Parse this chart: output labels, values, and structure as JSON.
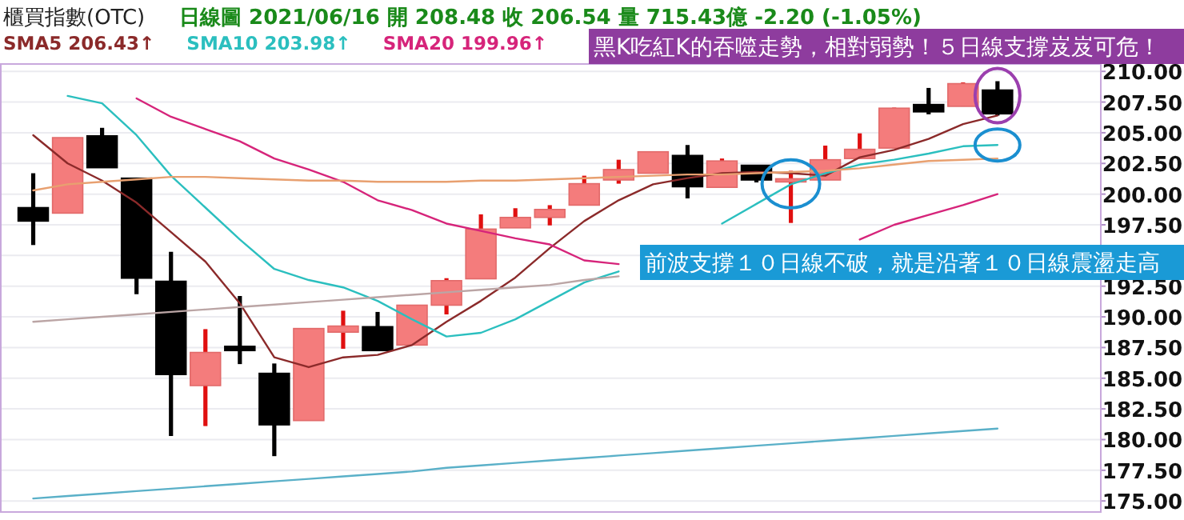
{
  "chart_data": {
    "type": "candlestick",
    "title": "櫃買指數(OTC)",
    "subtitle": "日線圖  2021/06/16  開 208.48  收 206.54  量 715.43億  -2.20 (-1.05%)",
    "categories": [
      null,
      null,
      null,
      null,
      null,
      null,
      null,
      null,
      null,
      null,
      null,
      null,
      null,
      null,
      null,
      null,
      null,
      null,
      null,
      null,
      null,
      null,
      null,
      null,
      null,
      null,
      null,
      null,
      null
    ],
    "ohlc": [
      [
        198.9,
        201.7,
        195.85,
        197.8
      ],
      [
        198.45,
        204.6,
        198.45,
        204.6
      ],
      [
        204.75,
        205.4,
        202.15,
        202.15
      ],
      [
        201.3,
        201.3,
        191.85,
        193.15
      ],
      [
        192.9,
        195.3,
        180.3,
        185.3
      ],
      [
        184.4,
        189.0,
        181.1,
        187.1
      ],
      [
        187.6,
        191.7,
        186.15,
        187.25
      ],
      [
        185.4,
        186.2,
        178.65,
        181.2
      ],
      [
        181.55,
        189.05,
        181.55,
        189.05
      ],
      [
        188.75,
        190.5,
        187.4,
        189.25
      ],
      [
        189.2,
        190.4,
        187.25,
        187.25
      ],
      [
        187.7,
        190.95,
        187.7,
        190.95
      ],
      [
        190.95,
        193.15,
        190.2,
        192.95
      ],
      [
        193.1,
        198.35,
        193.1,
        197.15
      ],
      [
        197.25,
        198.85,
        197.25,
        198.1
      ],
      [
        198.1,
        199.1,
        197.45,
        198.75
      ],
      [
        199.1,
        201.5,
        199.1,
        200.85
      ],
      [
        201.15,
        202.8,
        200.85,
        202.0
      ],
      [
        201.7,
        203.45,
        201.7,
        203.45
      ],
      [
        203.15,
        204.0,
        199.65,
        200.6
      ],
      [
        200.55,
        202.9,
        200.55,
        202.7
      ],
      [
        202.35,
        202.35,
        200.95,
        201.15
      ],
      [
        201.1,
        201.9,
        197.65,
        201.25
      ],
      [
        201.15,
        203.95,
        201.15,
        202.8
      ],
      [
        202.9,
        204.95,
        202.9,
        203.65
      ],
      [
        203.75,
        207.05,
        203.75,
        207.0
      ],
      [
        207.3,
        208.65,
        206.5,
        206.7
      ],
      [
        207.15,
        209.1,
        207.15,
        209.0
      ],
      [
        208.48,
        209.2,
        206.4,
        206.54
      ]
    ],
    "colors": [
      "#000000",
      "#f47c7c",
      "#000000",
      "#000000",
      "#000000",
      "#f47c7c",
      "#000000",
      "#000000",
      "#f47c7c",
      "#f47c7c",
      "#000000",
      "#f47c7c",
      "#f47c7c",
      "#f47c7c",
      "#f47c7c",
      "#f47c7c",
      "#f47c7c",
      "#f47c7c",
      "#f47c7c",
      "#000000",
      "#f47c7c",
      "#000000",
      "#f47c7c",
      "#f47c7c",
      "#f47c7c",
      "#f47c7c",
      "#000000",
      "#f47c7c",
      "#000000"
    ],
    "series": [
      {
        "name": "SMA5 206.43↑",
        "type": "line",
        "color": "#8b2a2a",
        "values": [
          204.8,
          202.5,
          201.1,
          199.3,
          196.9,
          194.5,
          191.1,
          186.7,
          185.9,
          186.7,
          186.9,
          187.7,
          189.6,
          191.3,
          193.2,
          195.6,
          197.8,
          199.5,
          200.8,
          201.3,
          201.7,
          201.8,
          201.7,
          201.5,
          203.0,
          203.6,
          204.5,
          205.7,
          206.4
        ]
      },
      {
        "name": "SMA10 203.98↑",
        "type": "line",
        "color": "#2bbfbf",
        "values": [
          null,
          208.0,
          207.4,
          204.8,
          201.5,
          198.9,
          196.3,
          193.9,
          193.0,
          192.4,
          191.3,
          189.8,
          188.4,
          188.7,
          189.8,
          191.3,
          192.8,
          193.7,
          null,
          null,
          197.6,
          199.2,
          200.8,
          201.7,
          202.4,
          202.8,
          203.3,
          203.9,
          204.0
        ]
      },
      {
        "name": "SMA20 199.96↑",
        "type": "line",
        "color": "#d6247a",
        "values": [
          null,
          null,
          null,
          207.8,
          206.3,
          205.3,
          204.3,
          202.9,
          202.0,
          201.0,
          199.5,
          198.7,
          197.6,
          197.0,
          196.4,
          195.9,
          194.6,
          194.3,
          null,
          null,
          null,
          null,
          null,
          null,
          196.3,
          197.5,
          198.3,
          199.1,
          200.0
        ]
      },
      {
        "type": "line",
        "color": "#e8a070",
        "values": [
          200.3,
          200.8,
          201.0,
          201.2,
          201.4,
          201.4,
          201.3,
          201.2,
          201.1,
          201.1,
          201.0,
          201.0,
          201.0,
          201.1,
          201.1,
          201.2,
          201.3,
          201.4,
          201.5,
          201.6,
          201.6,
          201.7,
          201.8,
          201.9,
          202.1,
          202.4,
          202.7,
          202.8,
          202.9
        ]
      },
      {
        "type": "line",
        "color": "#bba5a5",
        "values": [
          189.6,
          189.8,
          190.0,
          190.2,
          190.4,
          190.6,
          190.8,
          191.0,
          191.2,
          191.4,
          191.6,
          191.8,
          192.0,
          192.2,
          192.4,
          192.6,
          193.0,
          193.3,
          null,
          null,
          null,
          null,
          null,
          null,
          null,
          null,
          null,
          null,
          null
        ]
      },
      {
        "type": "line",
        "color": "#5ab0c8",
        "values": [
          175.2,
          175.4,
          175.6,
          175.8,
          176.0,
          176.2,
          176.4,
          176.6,
          176.8,
          177.0,
          177.2,
          177.4,
          177.7,
          177.9,
          178.1,
          178.3,
          178.5,
          178.7,
          178.9,
          179.1,
          179.3,
          179.5,
          179.7,
          179.9,
          180.1,
          180.3,
          180.5,
          180.7,
          180.9
        ]
      }
    ],
    "ylim": [
      174.1,
      210.6
    ],
    "yticks": [
      {
        "value": 175,
        "label": "175.00"
      },
      {
        "value": 177.5,
        "label": "177.50"
      },
      {
        "value": 180,
        "label": "180.00"
      },
      {
        "value": 182.5,
        "label": "182.50"
      },
      {
        "value": 185,
        "label": "185.00"
      },
      {
        "value": 187.5,
        "label": "187.50"
      },
      {
        "value": 190,
        "label": "190.00"
      },
      {
        "value": 192.5,
        "label": "192.50"
      },
      {
        "value": 195,
        "label": null
      },
      {
        "value": 197.5,
        "label": "197.50"
      },
      {
        "value": 200,
        "label": "200.00"
      },
      {
        "value": 202.5,
        "label": "202.50"
      },
      {
        "value": 205,
        "label": "205.00"
      },
      {
        "value": 207.5,
        "label": "207.50"
      },
      {
        "value": 210,
        "label": "210.00"
      }
    ],
    "grid": "y",
    "legend": "top left",
    "annotations": [
      "黑K吃紅K的吞噬走勢，相對弱勢！５日線支撐岌岌可危！",
      "前波支撐１０日線不破，就是沿著１０日線震盪走高"
    ]
  }
}
